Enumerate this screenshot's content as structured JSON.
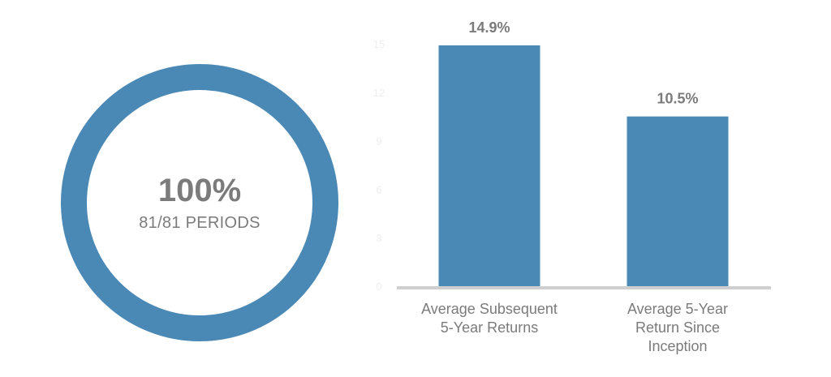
{
  "colors": {
    "primary": "#4a88b5",
    "text": "#7b7b7b",
    "baseline": "#cfcfcf",
    "faint_tick": "#eeeeee"
  },
  "donut": {
    "percent": "100%",
    "subtitle": "81/81 PERIODS",
    "fraction": 1.0
  },
  "chart_data": {
    "type": "bar",
    "categories": [
      [
        "Average Subsequent",
        "5-Year Returns"
      ],
      [
        "Average 5-Year",
        "Return Since",
        "Inception"
      ]
    ],
    "values": [
      14.9,
      10.5
    ],
    "data_labels": [
      "14.9%",
      "10.5%"
    ],
    "ylim": [
      0,
      16
    ],
    "y_ticks": [
      0,
      3,
      6,
      9,
      12,
      15
    ],
    "grid": false,
    "title": "",
    "xlabel": "",
    "ylabel": ""
  }
}
